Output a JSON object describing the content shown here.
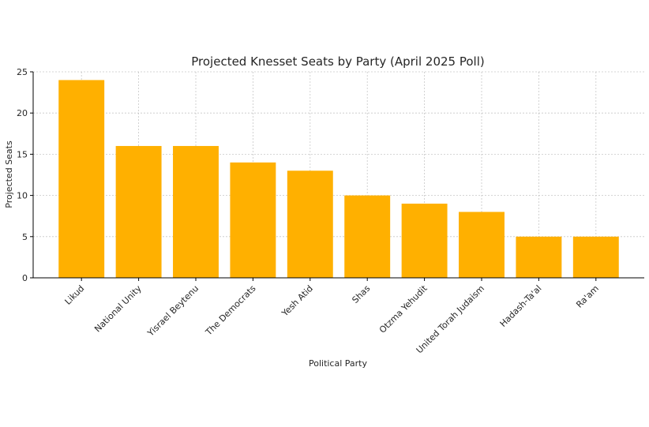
{
  "chart_data": {
    "type": "bar",
    "title": "Projected Knesset Seats by Party (April 2025 Poll)",
    "xlabel": "Political Party",
    "ylabel": "Projected Seats",
    "categories": [
      "Likud",
      "National Unity",
      "Yisrael Beytenu",
      "The Democrats",
      "Yesh Atid",
      "Shas",
      "Otzma Yehudit",
      "United Torah Judaism",
      "Hadash-Ta'al",
      "Ra'am"
    ],
    "values": [
      24,
      16,
      16,
      14,
      13,
      10,
      9,
      8,
      5,
      5
    ],
    "ylim": [
      0,
      25
    ],
    "yticks": [
      0,
      5,
      10,
      15,
      20,
      25
    ],
    "grid": true,
    "bar_color": "#FFB000"
  }
}
